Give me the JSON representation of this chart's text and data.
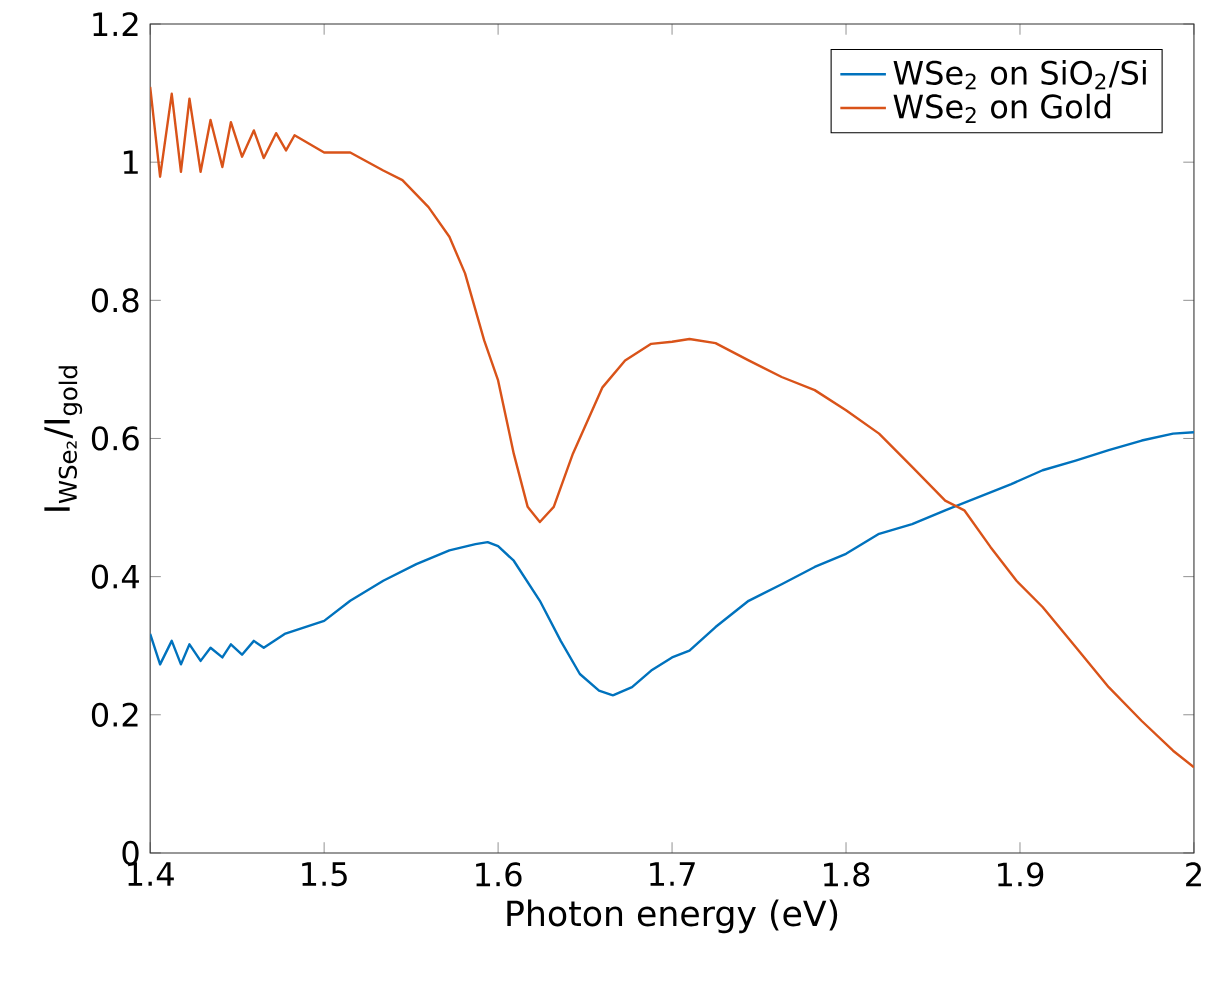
{
  "chart_data": {
    "type": "line",
    "xlabel": "Photon energy (eV)",
    "ylabel": "I$_{WSe₂}$/I$_{gold}$",
    "xlim": [
      1.4,
      2.0
    ],
    "ylim": [
      0,
      1.2
    ],
    "xticks": [
      1.4,
      1.5,
      1.6,
      1.7,
      1.8,
      1.9,
      2
    ],
    "yticks": [
      0,
      0.2,
      0.4,
      0.6,
      0.8,
      1,
      1.2
    ],
    "grid": false,
    "legend": "top right",
    "series": [
      {
        "name": "WSe$_{2}$ on SiO$_{2}$/Si",
        "color": "#0072bd",
        "x": [
          1.4,
          1.4057,
          1.4124,
          1.4177,
          1.4226,
          1.429,
          1.4347,
          1.4415,
          1.4464,
          1.4528,
          1.4596,
          1.4653,
          1.4773,
          1.5,
          1.515,
          1.534,
          1.553,
          1.572,
          1.587,
          1.594,
          1.6,
          1.609,
          1.624,
          1.636,
          1.647,
          1.658,
          1.666,
          1.677,
          1.688,
          1.7,
          1.71,
          1.725,
          1.744,
          1.763,
          1.782,
          1.8,
          1.819,
          1.838,
          1.857,
          1.876,
          1.895,
          1.913,
          1.932,
          1.951,
          1.97,
          1.988,
          2.0
        ],
        "values": [
          0.317,
          0.273,
          0.307,
          0.273,
          0.302,
          0.278,
          0.297,
          0.283,
          0.302,
          0.287,
          0.307,
          0.297,
          0.317,
          0.336,
          0.365,
          0.394,
          0.418,
          0.438,
          0.447,
          0.45,
          0.444,
          0.423,
          0.365,
          0.307,
          0.259,
          0.235,
          0.228,
          0.24,
          0.264,
          0.283,
          0.293,
          0.327,
          0.365,
          0.389,
          0.414,
          0.433,
          0.462,
          0.476,
          0.496,
          0.515,
          0.534,
          0.554,
          0.568,
          0.583,
          0.597,
          0.607,
          0.609
        ]
      },
      {
        "name": "WSe$_{2}$ on Gold",
        "color": "#d95319",
        "x": [
          1.4,
          1.4057,
          1.4124,
          1.4177,
          1.4226,
          1.429,
          1.4347,
          1.4415,
          1.4464,
          1.4528,
          1.4596,
          1.4653,
          1.4724,
          1.4781,
          1.483,
          1.5,
          1.515,
          1.534,
          1.545,
          1.56,
          1.572,
          1.581,
          1.592,
          1.6,
          1.609,
          1.617,
          1.624,
          1.632,
          1.643,
          1.66,
          1.673,
          1.688,
          1.7,
          1.71,
          1.725,
          1.744,
          1.763,
          1.782,
          1.8,
          1.819,
          1.838,
          1.857,
          1.868,
          1.883,
          1.898,
          1.913,
          1.932,
          1.951,
          1.97,
          1.988,
          2.0
        ],
        "values": [
          1.109,
          0.979,
          1.099,
          0.986,
          1.092,
          0.986,
          1.061,
          0.993,
          1.058,
          1.008,
          1.046,
          1.006,
          1.042,
          1.017,
          1.039,
          1.014,
          1.014,
          0.988,
          0.974,
          0.935,
          0.892,
          0.839,
          0.742,
          0.684,
          0.578,
          0.501,
          0.479,
          0.501,
          0.578,
          0.674,
          0.713,
          0.737,
          0.74,
          0.744,
          0.738,
          0.713,
          0.689,
          0.67,
          0.641,
          0.607,
          0.559,
          0.51,
          0.496,
          0.443,
          0.394,
          0.356,
          0.298,
          0.24,
          0.191,
          0.148,
          0.124
        ]
      }
    ]
  }
}
